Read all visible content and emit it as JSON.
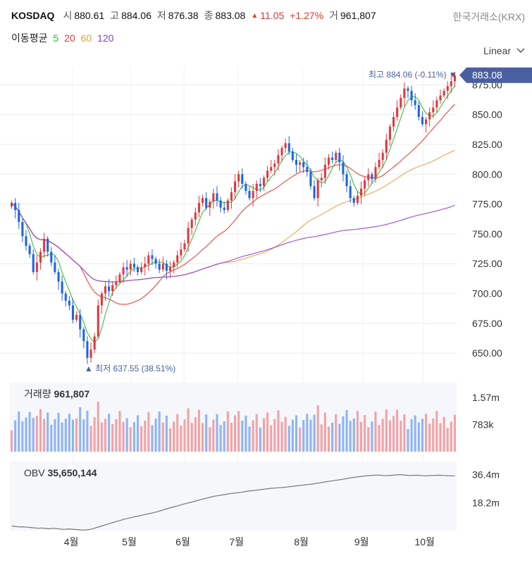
{
  "header": {
    "symbol": "KOSDAQ",
    "open_label": "시",
    "open": "880.61",
    "high_label": "고",
    "high": "884.06",
    "low_label": "저",
    "low": "876.38",
    "close_label": "종",
    "close": "883.08",
    "change_icon": "triangle-up-icon",
    "change": "11.05",
    "change_pct": "+1.27%",
    "volume_label": "거",
    "volume": "961,807",
    "exchange": "한국거래소(KRX)"
  },
  "moving_average": {
    "label": "이동평균",
    "periods": [
      {
        "period": "5",
        "color": "#2eb82e"
      },
      {
        "period": "20",
        "color": "#e0392f"
      },
      {
        "period": "60",
        "color": "#e8a040"
      },
      {
        "period": "120",
        "color": "#8a3fd1"
      }
    ]
  },
  "scale_button": {
    "label": "Linear",
    "icon": "chevron-down-icon"
  },
  "colors": {
    "up": "#e0393e",
    "down": "#1e64e6",
    "accent": "#4a5fa0",
    "grid": "#ececec"
  },
  "chart_data": [
    {
      "type": "candlestick",
      "title": "KOSDAQ",
      "x_tick_labels": [
        "4월",
        "5월",
        "6월",
        "7월",
        "8월",
        "9월",
        "10월"
      ],
      "y_ticks": [
        "650.00",
        "675.00",
        "700.00",
        "725.00",
        "750.00",
        "775.00",
        "800.00",
        "825.00",
        "850.00",
        "875.00"
      ],
      "ylim": [
        630,
        890
      ],
      "last_price": "883.08",
      "high_annotation": {
        "label": "최고",
        "value": "884.06",
        "pct": "(-0.11%)"
      },
      "low_annotation": {
        "label": "최저",
        "value": "637.55",
        "pct": "(38.51%)"
      },
      "series": {
        "close": [
          776,
          770,
          760,
          748,
          740,
          733,
          718,
          726,
          735,
          746,
          735,
          726,
          718,
          710,
          700,
          694,
          690,
          678,
          682,
          670,
          660,
          646,
          653,
          664,
          690,
          700,
          706,
          702,
          707,
          710,
          716,
          722,
          720,
          725,
          722,
          718,
          722,
          725,
          732,
          729,
          725,
          720,
          725,
          719,
          722,
          726,
          732,
          737,
          742,
          755,
          762,
          768,
          776,
          780,
          772,
          777,
          784,
          778,
          772,
          770,
          778,
          785,
          794,
          800,
          792,
          786,
          780,
          786,
          792,
          790,
          797,
          803,
          806,
          809,
          816,
          822,
          826,
          819,
          812,
          808,
          810,
          806,
          802,
          790,
          780,
          795,
          797,
          808,
          814,
          812,
          818,
          810,
          800,
          790,
          780,
          776,
          782,
          788,
          795,
          800,
          796,
          806,
          812,
          818,
          829,
          840,
          848,
          856,
          864,
          872,
          870,
          862,
          858,
          848,
          842,
          846,
          852,
          856,
          862,
          866,
          870,
          874,
          878,
          883
        ],
        "ma5_note": "5",
        "ma20_note": "20",
        "ma60_note": "60",
        "ma120_note": "120"
      }
    },
    {
      "type": "bar",
      "title": "거래량",
      "value_label": "961,807",
      "y_ticks": [
        "1.57m",
        "783k"
      ],
      "ylim": [
        0,
        2000000
      ]
    },
    {
      "type": "line",
      "title": "OBV",
      "value_label": "35,650,144",
      "y_ticks": [
        "36.4m",
        "18.2m"
      ],
      "ylim": [
        0,
        45000000
      ],
      "values": [
        3000000,
        2700000,
        2400000,
        2500000,
        2200000,
        2000000,
        1800000,
        1500000,
        1700000,
        1400000,
        1200000,
        1500000,
        1300000,
        1000000,
        800000,
        1100000,
        900000,
        700000,
        500000,
        300000,
        500000,
        800000,
        1500000,
        2300000,
        3000000,
        3800000,
        4500000,
        5300000,
        6000000,
        6700000,
        7500000,
        8000000,
        8600000,
        9200000,
        9600000,
        10200000,
        10800000,
        11300000,
        11800000,
        12500000,
        13200000,
        14000000,
        14700000,
        15400000,
        16000000,
        16700000,
        17400000,
        18000000,
        18600000,
        19300000,
        20000000,
        20600000,
        21200000,
        21800000,
        22400000,
        22800000,
        23200000,
        23600000,
        24000000,
        24300000,
        24600000,
        24900000,
        25300000,
        25700000,
        26000000,
        26300000,
        26600000,
        26900000,
        27200000,
        27500000,
        27700000,
        27900000,
        28100000,
        28300000,
        28600000,
        28900000,
        29200000,
        29500000,
        29800000,
        30000000,
        30300000,
        30700000,
        31100000,
        31500000,
        31900000,
        32300000,
        32700000,
        33000000,
        33400000,
        33800000,
        34200000,
        34600000,
        35000000,
        35300000,
        35600000,
        35800000,
        36000000,
        36200000,
        36100000,
        35900000,
        35800000,
        36000000,
        36200000,
        36400000,
        36300000,
        36100000,
        35900000,
        36000000,
        36100000,
        35900000,
        35700000,
        35800000,
        35900000,
        36000000,
        36100000,
        35900000,
        35800000,
        35700000,
        35650144
      ]
    }
  ]
}
